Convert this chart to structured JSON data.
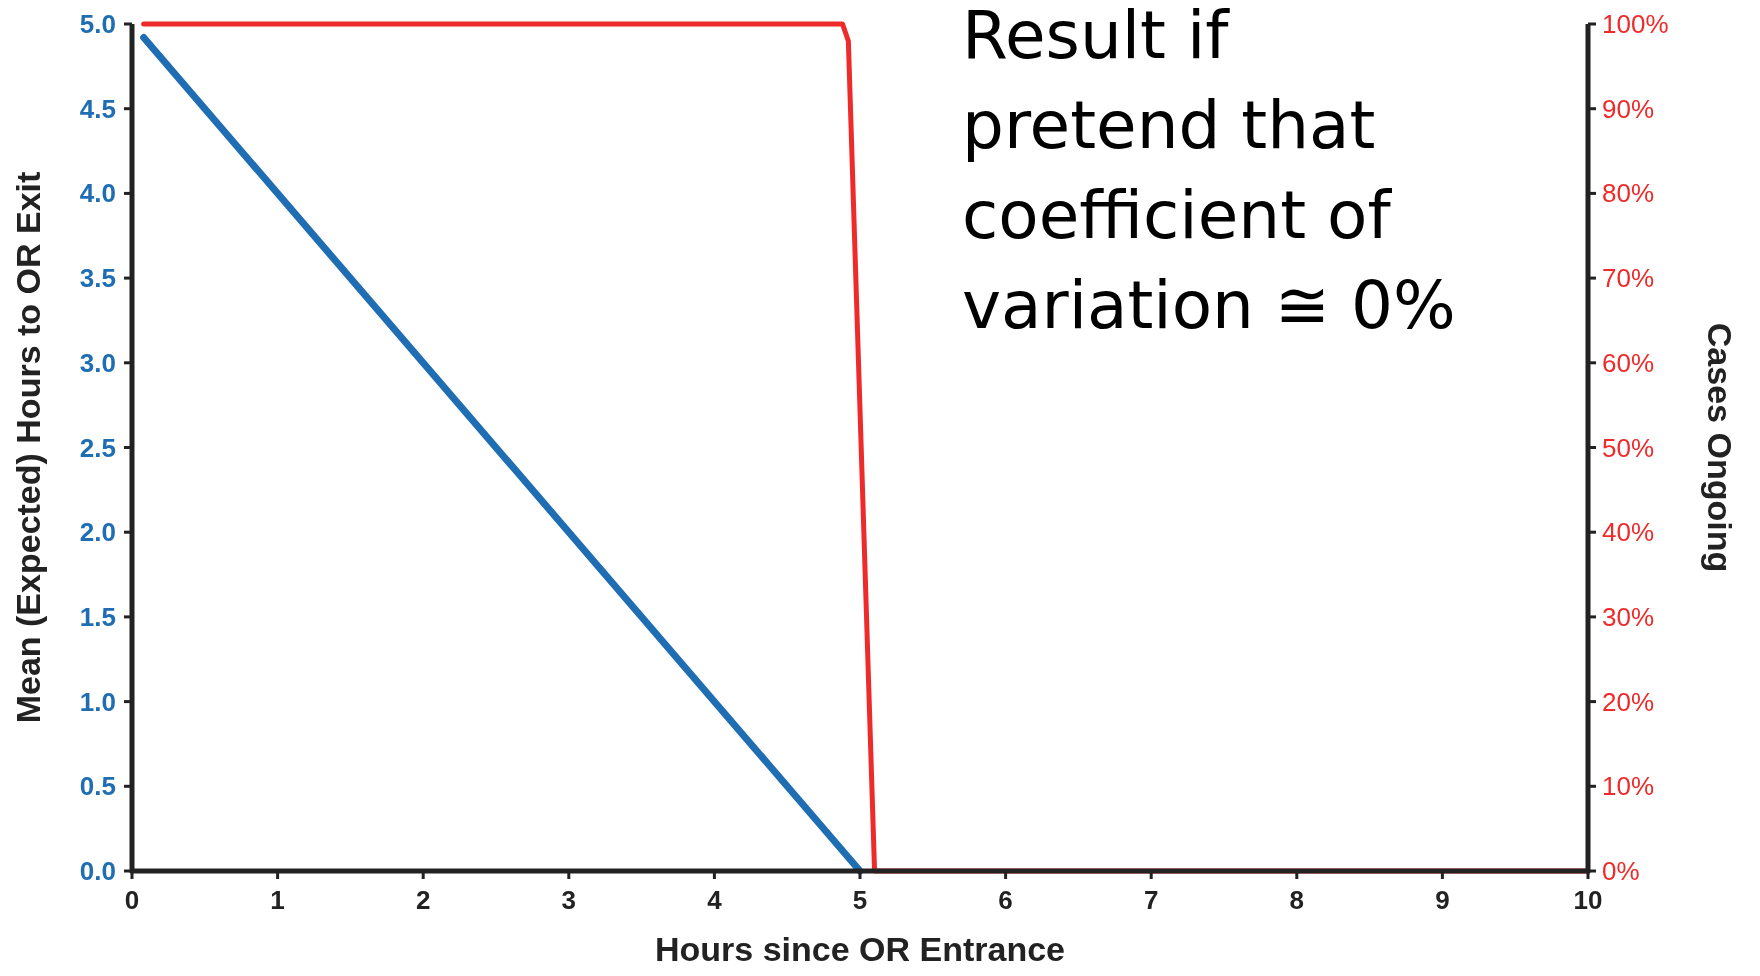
{
  "chart_data": {
    "type": "line",
    "xlabel": "Hours since OR Entrance",
    "ylabel": "Mean (Expected) Hours to OR Exit",
    "y2label": "Cases Ongoing",
    "xlim": [
      0,
      10
    ],
    "xticks": [
      0,
      1,
      2,
      3,
      4,
      5,
      6,
      7,
      8,
      9,
      10
    ],
    "ylim": [
      0,
      5
    ],
    "yticks": [
      {
        "value": 0,
        "label": "0.0"
      },
      {
        "value": 0.5,
        "label": "0.5"
      },
      {
        "value": 1,
        "label": "1.0"
      },
      {
        "value": 1.5,
        "label": "1.5"
      },
      {
        "value": 2,
        "label": "2.0"
      },
      {
        "value": 2.5,
        "label": "2.5"
      },
      {
        "value": 3,
        "label": "3.0"
      },
      {
        "value": 3.5,
        "label": "3.5"
      },
      {
        "value": 4,
        "label": "4.0"
      },
      {
        "value": 4.5,
        "label": "4.5"
      },
      {
        "value": 5,
        "label": "5.0"
      }
    ],
    "y2lim": [
      0,
      100
    ],
    "y2ticks": [
      {
        "value": 0,
        "label": "0%"
      },
      {
        "value": 10,
        "label": "10%"
      },
      {
        "value": 20,
        "label": "20%"
      },
      {
        "value": 30,
        "label": "30%"
      },
      {
        "value": 40,
        "label": "40%"
      },
      {
        "value": 50,
        "label": "50%"
      },
      {
        "value": 60,
        "label": "60%"
      },
      {
        "value": 70,
        "label": "70%"
      },
      {
        "value": 80,
        "label": "80%"
      },
      {
        "value": 90,
        "label": "90%"
      },
      {
        "value": 100,
        "label": "100%"
      }
    ],
    "series": [
      {
        "color": "#1f6db3",
        "x": [
          0.08,
          5
        ],
        "values": [
          4.92,
          0
        ]
      },
      {
        "color": "#ee2a2a",
        "axis": "y2",
        "x": [
          0.08,
          4.88,
          4.92,
          5.1,
          10
        ],
        "values": [
          100,
          100,
          98,
          0,
          0
        ]
      }
    ],
    "grid": false,
    "marker": "none",
    "line_style": "solid",
    "annotations": [
      "Result if\npretend that\ncoefficient of\nvariation ≅ 0%"
    ]
  }
}
